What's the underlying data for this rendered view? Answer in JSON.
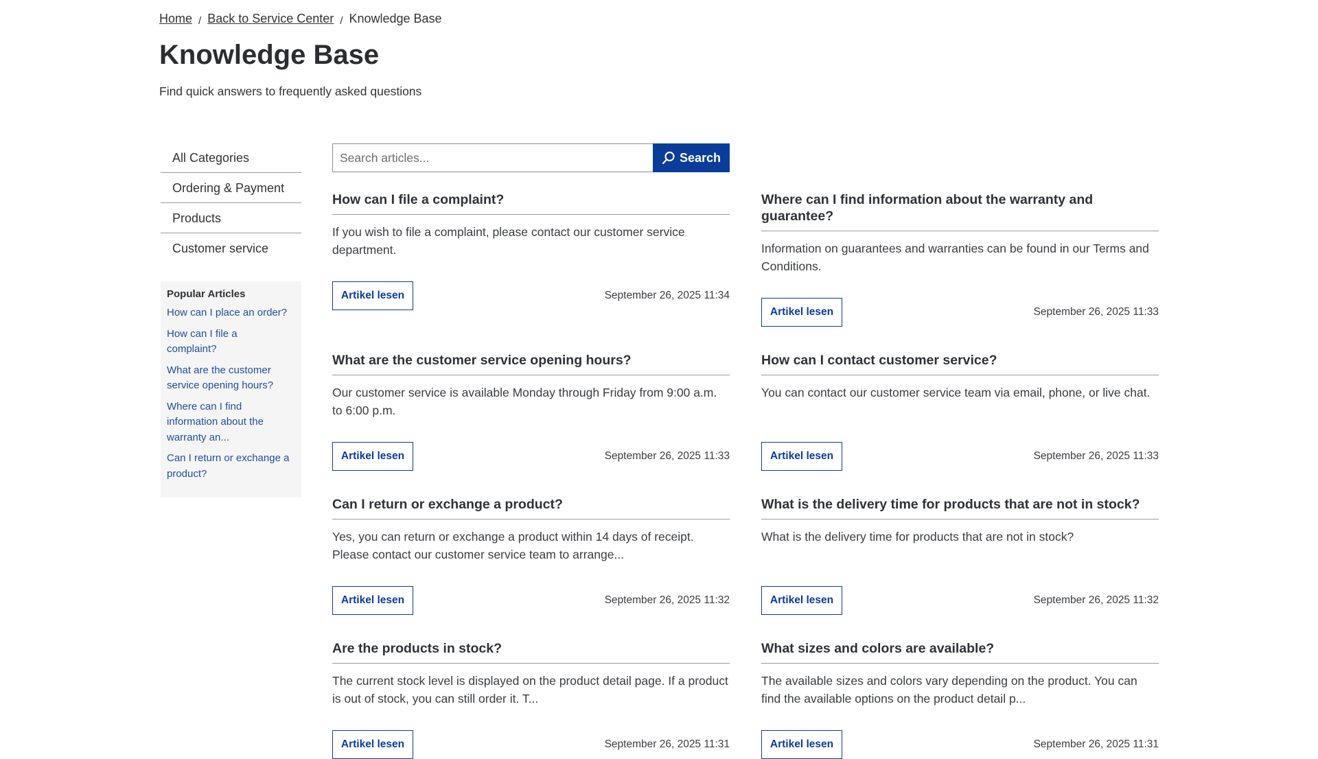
{
  "breadcrumb": {
    "items": [
      "Home",
      "Back to Service Center"
    ],
    "current": "Knowledge Base",
    "separator": "/"
  },
  "header": {
    "title": "Knowledge Base",
    "subtitle": "Find quick answers to frequently asked questions"
  },
  "sidebar": {
    "categories": [
      "All Categories",
      "Ordering & Payment",
      "Products",
      "Customer service"
    ],
    "popular_title": "Popular Articles",
    "popular": [
      "How can I place an order?",
      "How can I file a complaint?",
      "What are the customer service opening hours?",
      "Where can I find information about the warranty an...",
      "Can I return or exchange a product?"
    ]
  },
  "search": {
    "placeholder": "Search articles...",
    "value": "",
    "button_label": "Search",
    "icon": "search-icon"
  },
  "colors": {
    "accent": "#0a3d99",
    "link": "#1f4f9c",
    "text": "#2f3236"
  },
  "articles": [
    {
      "title": "How can I file a complaint?",
      "excerpt": "If you wish to file a complaint, please contact our customer service department.",
      "button": "Artikel lesen",
      "date": "September 26, 2025 11:34"
    },
    {
      "title": "Where can I find information about the warranty and guarantee?",
      "excerpt": "Information on guarantees and warranties can be found in our Terms and Conditions.",
      "button": "Artikel lesen",
      "date": "September 26, 2025 11:33"
    },
    {
      "title": "What are the customer service opening hours?",
      "excerpt": "Our customer service is available Monday through Friday from 9:00 a.m. to 6:00 p.m.",
      "button": "Artikel lesen",
      "date": "September 26, 2025 11:33"
    },
    {
      "title": "How can I contact customer service?",
      "excerpt": "You can contact our customer service team via email, phone, or live chat.",
      "button": "Artikel lesen",
      "date": "September 26, 2025 11:33"
    },
    {
      "title": "Can I return or exchange a product?",
      "excerpt": "Yes, you can return or exchange a product within 14 days of receipt. Please contact our customer service team to arrange...",
      "button": "Artikel lesen",
      "date": "September 26, 2025 11:32"
    },
    {
      "title": "What is the delivery time for products that are not in stock?",
      "excerpt": "What is the delivery time for products that are not in stock?",
      "button": "Artikel lesen",
      "date": "September 26, 2025 11:32"
    },
    {
      "title": "Are the products in stock?",
      "excerpt": "The current stock level is displayed on the product detail page. If a product is out of stock, you can still order it. T...",
      "button": "Artikel lesen",
      "date": "September 26, 2025 11:31"
    },
    {
      "title": "What sizes and colors are available?",
      "excerpt": "The available sizes and colors vary depending on the product. You can find the available options on the product detail p...",
      "button": "Artikel lesen",
      "date": "September 26, 2025 11:31"
    }
  ]
}
